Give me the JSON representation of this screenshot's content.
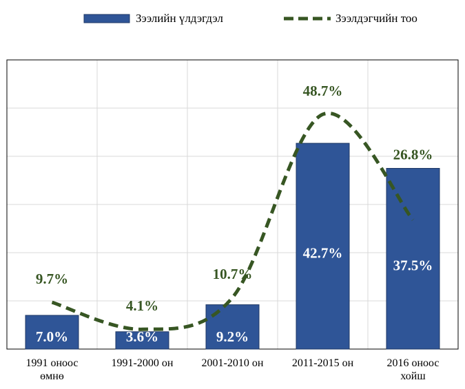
{
  "chart_data": {
    "type": "bar_line",
    "categories": [
      "1991 оноос өмнө",
      "1991-2000 он",
      "2001-2010 он",
      "2011-2015 он",
      "2016 оноос хойш"
    ],
    "series": [
      {
        "name": "Зээлийн үлдэгдэл",
        "type": "bar",
        "color": "#2f5597",
        "values": [
          7.0,
          3.6,
          9.2,
          42.7,
          37.5
        ],
        "value_labels": [
          "7.0%",
          "3.6%",
          "9.2%",
          "42.7%",
          "37.5%"
        ]
      },
      {
        "name": "Зээлдэгчийн тоо",
        "type": "line",
        "color": "#375623",
        "values": [
          9.7,
          4.1,
          10.7,
          48.7,
          26.8
        ],
        "value_labels": [
          "9.7%",
          "4.1%",
          "10.7%",
          "48.7%",
          "26.8%"
        ]
      }
    ],
    "ylim": [
      0,
      60
    ],
    "yticks": [
      0,
      10,
      20,
      30,
      40,
      50,
      60
    ],
    "grid": true,
    "legend": "top"
  }
}
